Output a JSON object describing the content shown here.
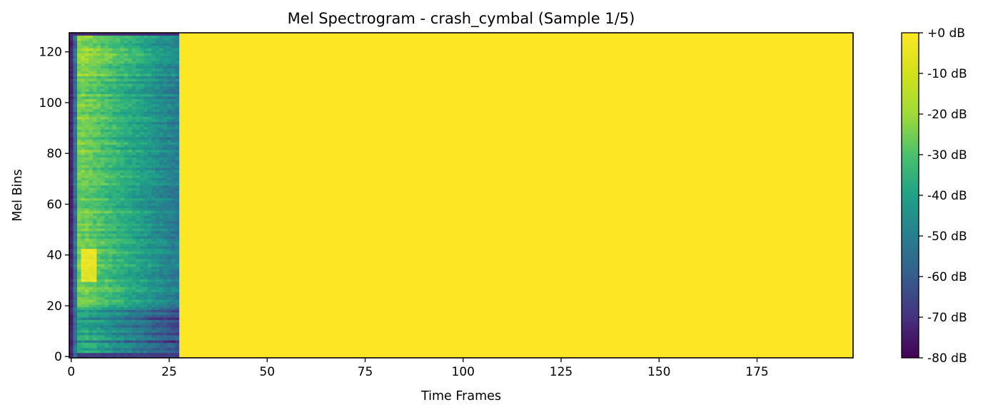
{
  "chart_data": {
    "type": "heatmap",
    "title": "Mel Spectrogram - crash_cymbal (Sample 1/5)",
    "xlabel": "Time Frames",
    "ylabel": "Mel Bins",
    "xlim": [
      -0.5,
      199.5
    ],
    "ylim": [
      -0.5,
      127.5
    ],
    "x_ticks": [
      0,
      25,
      50,
      75,
      100,
      125,
      150,
      175
    ],
    "x_tick_labels": [
      "0",
      "25",
      "50",
      "75",
      "100",
      "125",
      "150",
      "175"
    ],
    "y_ticks": [
      0,
      20,
      40,
      60,
      80,
      100,
      120
    ],
    "y_tick_labels": [
      "0",
      "20",
      "40",
      "60",
      "80",
      "100",
      "120"
    ],
    "n_time_frames": 200,
    "n_mel_bins": 128,
    "active_frames": [
      0,
      27
    ],
    "padding_value_db": 0,
    "colormap": "viridis",
    "colorbar": {
      "range_db": [
        -80,
        0
      ],
      "ticks": [
        0,
        -10,
        -20,
        -30,
        -40,
        -50,
        -60,
        -70,
        -80
      ],
      "tick_labels": [
        "+0 dB",
        "-10 dB",
        "-20 dB",
        "-30 dB",
        "-40 dB",
        "-50 dB",
        "-60 dB",
        "-70 dB",
        "-80 dB"
      ]
    },
    "grid": false
  }
}
